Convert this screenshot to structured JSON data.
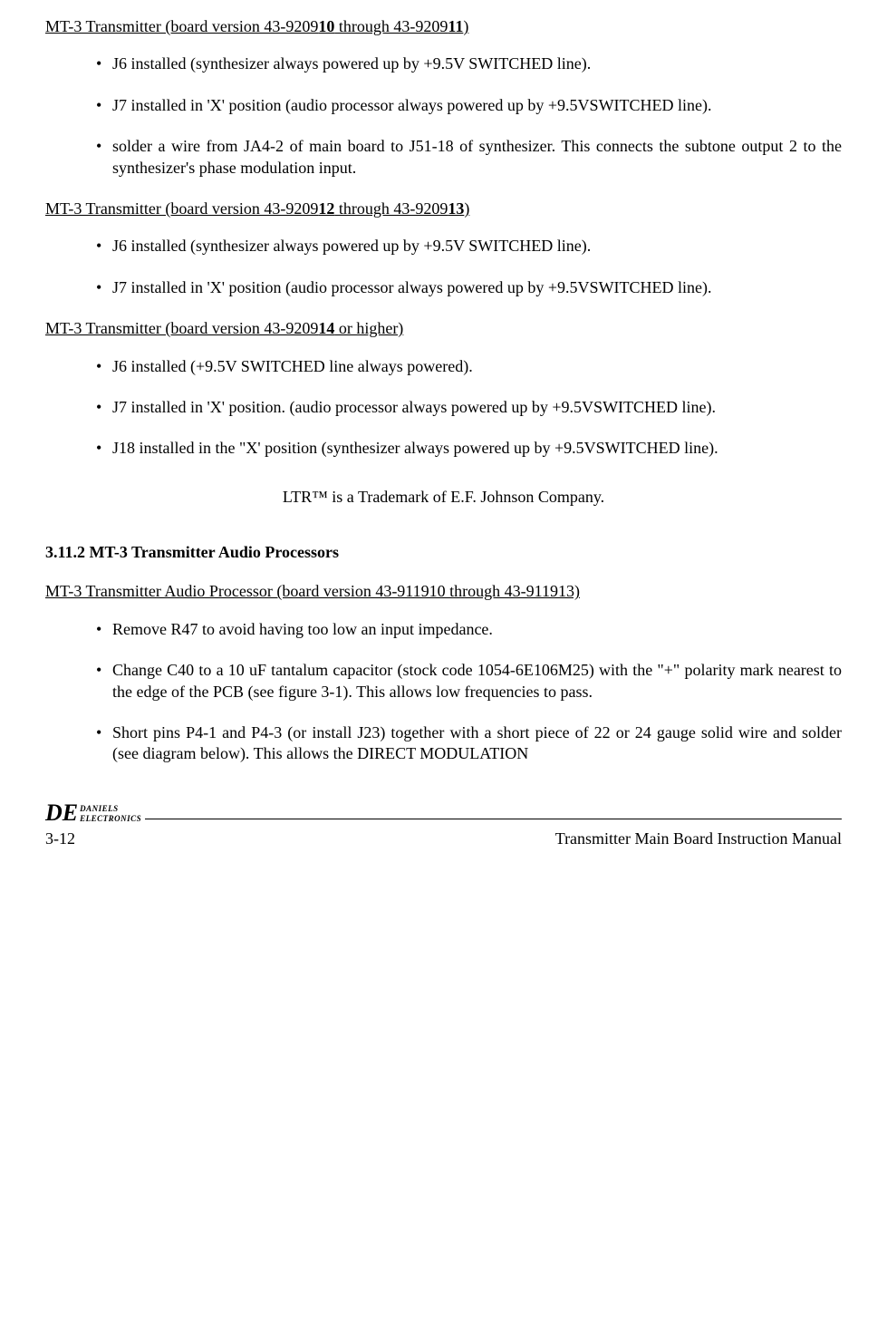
{
  "sections": [
    {
      "title_pre": "MT-3 Transmitter (board version 43-9209",
      "title_bold1": "10",
      "title_mid": " through 43-9209",
      "title_bold2": "11",
      "title_post": ")",
      "bullets": [
        "J6 installed (synthesizer always powered up by +9.5V SWITCHED line).",
        "J7 installed in 'X' position (audio processor always powered up by +9.5VSWITCHED line).",
        "solder a wire from JA4-2 of main board to J51-18 of synthesizer.  This connects the subtone output 2 to the synthesizer's phase modulation input."
      ]
    },
    {
      "title_pre": "MT-3 Transmitter (board version 43-9209",
      "title_bold1": "12",
      "title_mid": " through 43-9209",
      "title_bold2": "13",
      "title_post": ")",
      "bullets": [
        "J6 installed (synthesizer always powered up by +9.5V SWITCHED line).",
        "J7 installed in 'X' position (audio processor always powered up by +9.5VSWITCHED line)."
      ]
    },
    {
      "title_pre": "MT-3 Transmitter (board version 43-9209",
      "title_bold1": "14",
      "title_mid": " or higher)",
      "title_bold2": "",
      "title_post": "",
      "bullets": [
        "J6 installed (+9.5V SWITCHED line always powered).",
        "J7 installed in 'X' position.  (audio processor always powered up by +9.5VSWITCHED line).",
        "J18 installed in the \"X' position (synthesizer always powered up by +9.5VSWITCHED line)."
      ]
    }
  ],
  "trademark_line": "LTR™ is a Trademark of E.F. Johnson Company.",
  "sub_heading_num": "3.11.2",
  "sub_heading_txt": "MT-3 Transmitter Audio Processors",
  "ap_title": "MT-3 Transmitter Audio Processor (board version 43-911910 through 43-911913)",
  "ap_bullets": [
    "Remove R47 to avoid having too low an input impedance.",
    "Change C40 to a 10 uF tantalum capacitor (stock code 1054-6E106M25) with the \"+\" polarity mark nearest to the edge of the PCB (see figure 3-1).  This allows low frequencies to pass.",
    "Short pins P4-1 and P4-3 (or install J23) together with a short piece of 22 or 24 gauge solid wire and solder (see diagram below).  This allows the DIRECT MODULATION"
  ],
  "footer": {
    "logo_big": "DE",
    "logo_small_1": "DANIELS",
    "logo_small_2": "ELECTRONICS",
    "page_num": "3-12",
    "doc_title": "Transmitter Main Board Instruction Manual"
  }
}
